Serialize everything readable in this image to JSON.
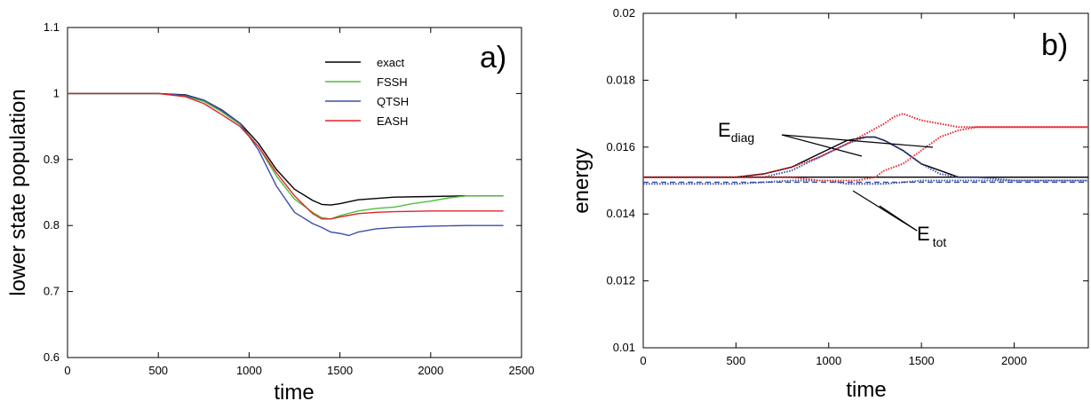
{
  "chart_data": [
    {
      "type": "line",
      "panel_label": "a)",
      "xlabel": "time",
      "ylabel": "lower state population",
      "xlim": [
        0,
        2500
      ],
      "ylim": [
        0.6,
        1.1
      ],
      "x_ticks": [
        "0",
        "500",
        "1000",
        "1500",
        "2000",
        "2500"
      ],
      "y_ticks": [
        "0.6",
        "0.7",
        "0.8",
        "0.9",
        "1",
        "1.1"
      ],
      "grid": false,
      "legend_position": "top-right",
      "series": [
        {
          "name": "exact",
          "color": "#000000",
          "x": [
            0,
            500,
            650,
            750,
            850,
            950,
            1050,
            1150,
            1250,
            1350,
            1400,
            1450,
            1500,
            1600,
            1800,
            2000,
            2200,
            2400
          ],
          "y": [
            1.0,
            1.0,
            0.998,
            0.99,
            0.975,
            0.955,
            0.925,
            0.885,
            0.855,
            0.838,
            0.832,
            0.831,
            0.833,
            0.839,
            0.843,
            0.844,
            0.845,
            0.845
          ]
        },
        {
          "name": "FSSH",
          "color": "#4fbf3a",
          "x": [
            0,
            500,
            650,
            750,
            850,
            950,
            1050,
            1150,
            1250,
            1350,
            1400,
            1450,
            1500,
            1600,
            1700,
            1800,
            1900,
            2000,
            2100,
            2200,
            2400
          ],
          "y": [
            1.0,
            1.0,
            0.996,
            0.988,
            0.972,
            0.953,
            0.92,
            0.875,
            0.84,
            0.82,
            0.812,
            0.81,
            0.815,
            0.822,
            0.826,
            0.828,
            0.833,
            0.837,
            0.842,
            0.845,
            0.845
          ]
        },
        {
          "name": "QTSH",
          "color": "#3b4fa8",
          "x": [
            0,
            500,
            650,
            750,
            850,
            950,
            1050,
            1150,
            1250,
            1350,
            1400,
            1450,
            1500,
            1550,
            1600,
            1700,
            1800,
            2000,
            2200,
            2400
          ],
          "y": [
            1.0,
            1.0,
            0.997,
            0.99,
            0.974,
            0.955,
            0.915,
            0.86,
            0.82,
            0.803,
            0.797,
            0.79,
            0.788,
            0.785,
            0.79,
            0.795,
            0.797,
            0.799,
            0.8,
            0.8
          ]
        },
        {
          "name": "EASH",
          "color": "#e0242a",
          "x": [
            0,
            500,
            650,
            750,
            850,
            950,
            1050,
            1150,
            1250,
            1350,
            1400,
            1450,
            1500,
            1600,
            1700,
            1800,
            2000,
            2200,
            2400
          ],
          "y": [
            1.0,
            1.0,
            0.995,
            0.985,
            0.968,
            0.95,
            0.92,
            0.88,
            0.845,
            0.818,
            0.81,
            0.81,
            0.813,
            0.818,
            0.82,
            0.821,
            0.822,
            0.822,
            0.822
          ]
        }
      ]
    },
    {
      "type": "line",
      "panel_label": "b)",
      "xlabel": "time",
      "ylabel": "energy",
      "xlim": [
        0,
        2400
      ],
      "ylim": [
        0.01,
        0.02
      ],
      "x_ticks": [
        "0",
        "500",
        "1000",
        "1500",
        "2000"
      ],
      "y_ticks": [
        "0.01",
        "0.012",
        "0.014",
        "0.016",
        "0.018",
        "0.02"
      ],
      "grid": false,
      "annotations": [
        {
          "main": "E",
          "sub": "diag"
        },
        {
          "main": "E",
          "sub": "tot"
        }
      ],
      "series": [
        {
          "group": "E_diag",
          "color": "#000000",
          "style": "solid",
          "x": [
            0,
            500,
            650,
            800,
            950,
            1100,
            1200,
            1250,
            1300,
            1400,
            1500,
            1600,
            1700,
            1800,
            2000,
            2400
          ],
          "y": [
            0.0151,
            0.0151,
            0.0152,
            0.0154,
            0.0158,
            0.0162,
            0.0163,
            0.0163,
            0.0162,
            0.0159,
            0.0155,
            0.0153,
            0.0151,
            0.0151,
            0.0151,
            0.0151
          ]
        },
        {
          "group": "E_tot",
          "color": "#000000",
          "style": "solid",
          "x": [
            0,
            2400
          ],
          "y": [
            0.0151,
            0.0151
          ]
        },
        {
          "group": "E_diag",
          "color": "#3b4fa8",
          "style": "dotted",
          "x": [
            0,
            500,
            650,
            800,
            950,
            1100,
            1200,
            1250,
            1300,
            1400,
            1500,
            1600,
            1700,
            1800,
            2000,
            2400
          ],
          "y": [
            0.0151,
            0.0151,
            0.0151,
            0.0153,
            0.0157,
            0.0161,
            0.0163,
            0.0163,
            0.0162,
            0.0159,
            0.0155,
            0.0152,
            0.0151,
            0.0151,
            0.015,
            0.015
          ]
        },
        {
          "group": "E_tot",
          "color": "#3b4fa8",
          "style": "dotted",
          "x": [
            0,
            500,
            800,
            1000,
            1100,
            1200,
            1300,
            1500,
            1700,
            2000,
            2400
          ],
          "y": [
            0.0149,
            0.0149,
            0.015,
            0.015,
            0.0149,
            0.0149,
            0.0149,
            0.015,
            0.015,
            0.015,
            0.015
          ]
        },
        {
          "group": "E_tot",
          "color": "#3b4fa8",
          "style": "dashed",
          "x": [
            0,
            2400
          ],
          "y": [
            0.01495,
            0.01495
          ]
        },
        {
          "group": "E_diag",
          "color": "#e0242a",
          "style": "dotted",
          "x": [
            0,
            500,
            650,
            800,
            950,
            1100,
            1200,
            1300,
            1350,
            1400,
            1450,
            1500,
            1600,
            1700,
            1800,
            2000,
            2400
          ],
          "y": [
            0.0151,
            0.0151,
            0.0152,
            0.0154,
            0.0157,
            0.0161,
            0.0164,
            0.0167,
            0.0169,
            0.017,
            0.0169,
            0.0168,
            0.0167,
            0.0166,
            0.0166,
            0.0166,
            0.0166
          ]
        },
        {
          "group": "E_tot",
          "color": "#e0242a",
          "style": "dotted",
          "x": [
            0,
            500,
            800,
            950,
            1050,
            1150,
            1250,
            1300,
            1400,
            1500,
            1600,
            1700,
            1800,
            2000,
            2400
          ],
          "y": [
            0.0151,
            0.0151,
            0.0151,
            0.015,
            0.015,
            0.015,
            0.0151,
            0.0153,
            0.0155,
            0.0159,
            0.0163,
            0.0165,
            0.0166,
            0.0166,
            0.0166
          ]
        }
      ]
    }
  ]
}
